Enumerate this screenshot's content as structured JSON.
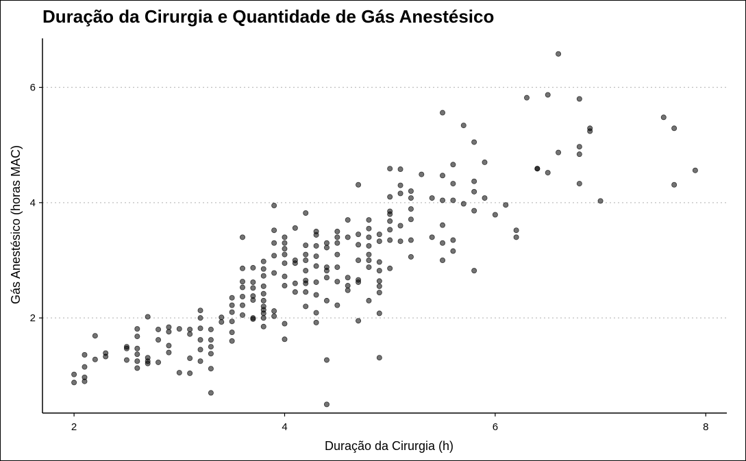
{
  "chart_data": {
    "type": "scatter",
    "title": "Duração da Cirurgia e Quantidade de Gás Anestésico",
    "xlabel": "Duração da Cirurgia (h)",
    "ylabel": "Gás Anestésico (horas MAC)",
    "xlim": [
      1.7,
      8.2
    ],
    "ylim": [
      0.35,
      6.85
    ],
    "xticks": [
      2,
      4,
      6,
      8
    ],
    "yticks": [
      2,
      4,
      6
    ],
    "grid": "horizontal-dotted",
    "point_color": "#000000",
    "point_opacity": 0.55,
    "x": [
      2.0,
      2.0,
      2.1,
      2.1,
      2.1,
      2.1,
      2.2,
      2.2,
      2.3,
      2.3,
      2.5,
      2.5,
      2.5,
      2.6,
      2.6,
      2.6,
      2.6,
      2.6,
      2.6,
      2.7,
      2.7,
      2.7,
      2.7,
      2.8,
      2.8,
      2.8,
      2.9,
      2.9,
      2.9,
      2.9,
      3.0,
      3.0,
      3.1,
      3.1,
      3.1,
      3.1,
      3.2,
      3.2,
      3.2,
      3.2,
      3.2,
      3.2,
      3.3,
      3.3,
      3.3,
      3.3,
      3.3,
      3.3,
      3.4,
      3.4,
      3.5,
      3.5,
      3.5,
      3.5,
      3.5,
      3.5,
      3.6,
      3.6,
      3.6,
      3.6,
      3.6,
      3.6,
      3.6,
      3.7,
      3.7,
      3.7,
      3.7,
      3.7,
      3.7,
      3.7,
      3.8,
      3.8,
      3.8,
      3.8,
      3.8,
      3.8,
      3.8,
      3.8,
      3.8,
      3.8,
      3.8,
      3.9,
      3.9,
      3.9,
      3.9,
      3.9,
      3.9,
      3.9,
      4.0,
      4.0,
      4.0,
      4.0,
      4.0,
      4.0,
      4.0,
      4.0,
      4.0,
      4.1,
      4.1,
      4.1,
      4.1,
      4.1,
      4.2,
      4.2,
      4.2,
      4.2,
      4.2,
      4.2,
      4.2,
      4.2,
      4.2,
      4.3,
      4.3,
      4.3,
      4.3,
      4.3,
      4.3,
      4.3,
      4.3,
      4.3,
      4.4,
      4.4,
      4.4,
      4.4,
      4.4,
      4.4,
      4.4,
      4.4,
      4.5,
      4.5,
      4.5,
      4.5,
      4.5,
      4.5,
      4.5,
      4.6,
      4.6,
      4.6,
      4.6,
      4.6,
      4.7,
      4.7,
      4.7,
      4.7,
      4.7,
      4.7,
      4.7,
      4.8,
      4.8,
      4.8,
      4.8,
      4.8,
      4.8,
      4.8,
      4.8,
      4.9,
      4.9,
      4.9,
      4.9,
      4.9,
      4.9,
      4.9,
      4.9,
      4.9,
      5.0,
      5.0,
      5.0,
      5.0,
      5.0,
      5.0,
      5.0,
      5.0,
      5.1,
      5.1,
      5.1,
      5.1,
      5.1,
      5.2,
      5.2,
      5.2,
      5.2,
      5.2,
      5.2,
      5.3,
      5.4,
      5.4,
      5.5,
      5.5,
      5.5,
      5.5,
      5.5,
      5.5,
      5.6,
      5.6,
      5.6,
      5.6,
      5.6,
      5.7,
      5.7,
      5.8,
      5.8,
      5.8,
      5.8,
      5.8,
      5.9,
      5.9,
      6.0,
      6.1,
      6.2,
      6.2,
      6.3,
      6.4,
      6.4,
      6.5,
      6.5,
      6.6,
      6.6,
      6.8,
      6.8,
      6.8,
      6.8,
      6.9,
      6.9,
      7.0,
      7.6,
      7.7,
      7.7,
      7.9
    ],
    "y": [
      1.02,
      0.88,
      1.36,
      1.15,
      0.97,
      0.9,
      1.69,
      1.28,
      1.39,
      1.33,
      1.5,
      1.47,
      1.27,
      1.81,
      1.68,
      1.47,
      1.37,
      1.25,
      1.13,
      2.02,
      1.31,
      1.25,
      1.21,
      1.8,
      1.62,
      1.23,
      1.84,
      1.76,
      1.52,
      1.4,
      1.81,
      1.05,
      1.8,
      1.72,
      1.3,
      1.04,
      2.13,
      2.0,
      1.82,
      1.62,
      1.45,
      1.25,
      1.8,
      1.62,
      1.5,
      1.38,
      1.12,
      0.7,
      2.01,
      1.93,
      2.35,
      2.22,
      2.1,
      1.94,
      1.75,
      1.6,
      3.4,
      2.86,
      2.63,
      2.53,
      2.37,
      2.22,
      2.05,
      2.87,
      2.62,
      2.52,
      2.38,
      2.31,
      2.0,
      1.98,
      2.98,
      2.85,
      2.73,
      2.55,
      2.42,
      2.3,
      2.2,
      2.14,
      2.08,
      2.0,
      1.85,
      3.95,
      3.52,
      3.3,
      3.08,
      2.78,
      2.12,
      2.03,
      3.4,
      3.3,
      3.2,
      3.1,
      2.95,
      2.72,
      2.56,
      1.9,
      1.63,
      3.56,
      3.0,
      2.95,
      2.6,
      2.45,
      3.82,
      3.26,
      3.1,
      3.0,
      2.82,
      2.65,
      2.6,
      2.45,
      2.2,
      3.5,
      3.44,
      3.25,
      3.07,
      2.9,
      2.62,
      2.4,
      2.09,
      1.92,
      3.3,
      3.22,
      2.88,
      2.82,
      2.7,
      2.3,
      1.27,
      0.5,
      3.5,
      3.4,
      3.3,
      3.1,
      2.88,
      2.63,
      2.22,
      3.7,
      3.4,
      2.7,
      2.56,
      2.48,
      4.31,
      3.45,
      3.27,
      3.0,
      2.66,
      2.62,
      1.95,
      3.7,
      3.55,
      3.4,
      3.25,
      3.1,
      3.0,
      2.88,
      2.3,
      3.45,
      3.33,
      2.97,
      2.82,
      2.64,
      2.55,
      2.44,
      2.08,
      1.31,
      4.59,
      4.1,
      3.85,
      3.8,
      3.68,
      3.53,
      3.35,
      2.86,
      4.58,
      4.3,
      4.16,
      3.6,
      3.33,
      4.2,
      4.08,
      3.89,
      3.71,
      3.35,
      3.06,
      4.49,
      4.08,
      3.4,
      5.56,
      4.47,
      4.04,
      3.61,
      3.3,
      3.0,
      4.66,
      4.33,
      4.04,
      3.35,
      3.16,
      5.34,
      3.98,
      5.05,
      4.37,
      4.19,
      3.86,
      2.82,
      4.7,
      4.08,
      3.79,
      3.96,
      3.52,
      3.4,
      5.82,
      4.59,
      4.59,
      5.87,
      4.52,
      6.58,
      4.87,
      5.8,
      4.97,
      4.84,
      4.33,
      5.29,
      5.24,
      4.03,
      5.48,
      5.29,
      4.31,
      4.56
    ]
  }
}
